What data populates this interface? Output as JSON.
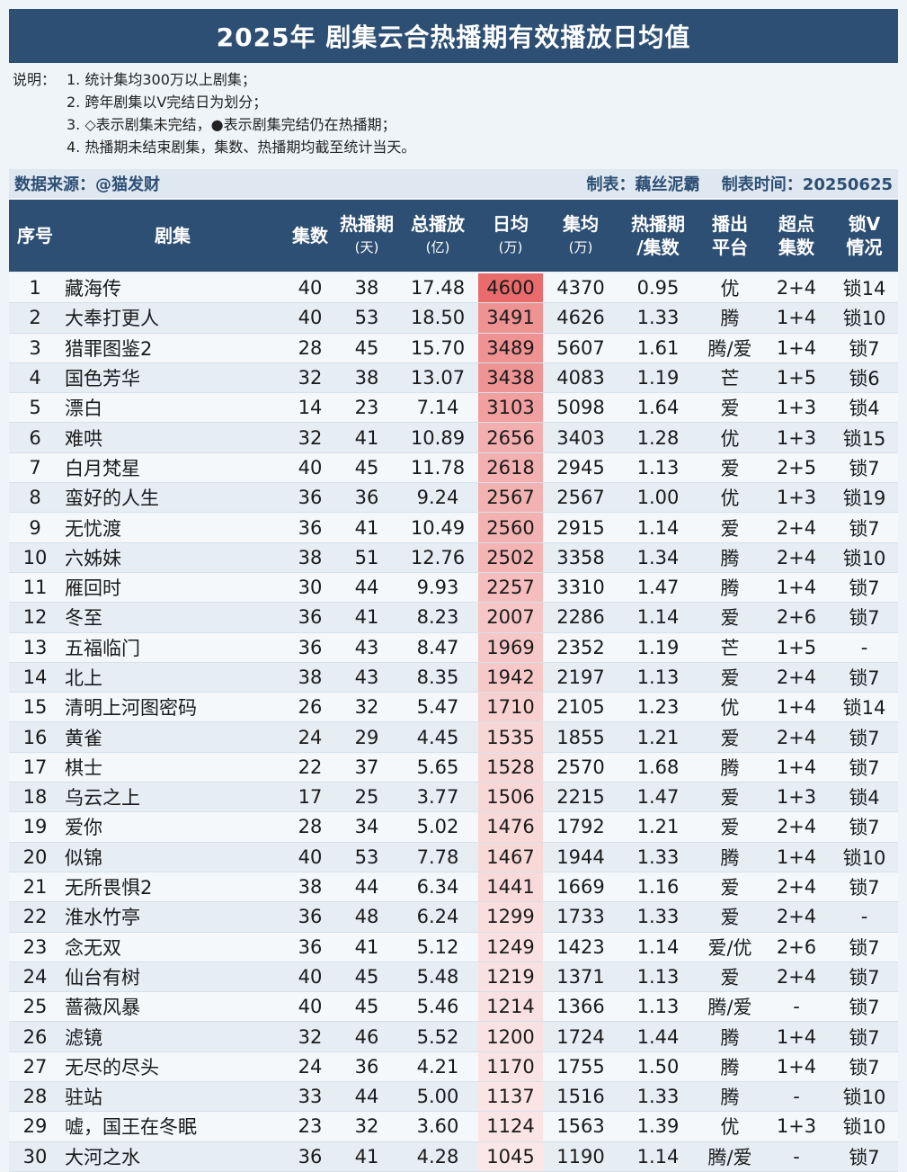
{
  "title": "2025年 剧集云合热播期有效播放日均值",
  "notes": {
    "label": "说明：",
    "items": [
      "1. 统计集均300万以上剧集；",
      "2. 跨年剧集以V完结日为划分；",
      "3. ◇表示剧集未完结，●表示剧集完结仍在热播期；",
      "4. 热播期未结束剧集，集数、热播期均截至统计当天。"
    ]
  },
  "source": {
    "left": "数据来源：@猫发财",
    "maker": "制表：藕丝泥霸",
    "date": "制表时间：20250625"
  },
  "headers": {
    "idx": "序号",
    "name": "剧集",
    "episodes": "集数",
    "days": "热播期",
    "days_unit": "(天)",
    "total": "总播放",
    "total_unit": "(亿)",
    "avg": "日均",
    "avg_unit": "(万)",
    "ep_avg": "集均",
    "ep_avg_unit": "(万)",
    "ratio": "热播期",
    "ratio_unit": "/集数",
    "platform": "播出",
    "platform2": "平台",
    "super": "超点",
    "super2": "集数",
    "lock": "锁V",
    "lock2": "情况"
  },
  "colors": {
    "header_bg": "#2d4f74",
    "avg_max": "#e96b6b",
    "avg_min": "#fbe7e7"
  },
  "rows": [
    {
      "idx": "1",
      "name": "藏海传",
      "ep": "40",
      "days": "38",
      "total": "17.48",
      "avg": "4600",
      "ep_avg": "4370",
      "ratio": "0.95",
      "plat": "优",
      "sup": "2+4",
      "lock": "锁14"
    },
    {
      "idx": "2",
      "name": "大奉打更人",
      "ep": "40",
      "days": "53",
      "total": "18.50",
      "avg": "3491",
      "ep_avg": "4626",
      "ratio": "1.33",
      "plat": "腾",
      "sup": "1+4",
      "lock": "锁10"
    },
    {
      "idx": "3",
      "name": "猎罪图鉴2",
      "ep": "28",
      "days": "45",
      "total": "15.70",
      "avg": "3489",
      "ep_avg": "5607",
      "ratio": "1.61",
      "plat": "腾/爱",
      "sup": "1+4",
      "lock": "锁7"
    },
    {
      "idx": "4",
      "name": "国色芳华",
      "ep": "32",
      "days": "38",
      "total": "13.07",
      "avg": "3438",
      "ep_avg": "4083",
      "ratio": "1.19",
      "plat": "芒",
      "sup": "1+5",
      "lock": "锁6"
    },
    {
      "idx": "5",
      "name": "漂白",
      "ep": "14",
      "days": "23",
      "total": "7.14",
      "avg": "3103",
      "ep_avg": "5098",
      "ratio": "1.64",
      "plat": "爱",
      "sup": "1+3",
      "lock": "锁4"
    },
    {
      "idx": "6",
      "name": "难哄",
      "ep": "32",
      "days": "41",
      "total": "10.89",
      "avg": "2656",
      "ep_avg": "3403",
      "ratio": "1.28",
      "plat": "优",
      "sup": "1+3",
      "lock": "锁15"
    },
    {
      "idx": "7",
      "name": "白月梵星",
      "ep": "40",
      "days": "45",
      "total": "11.78",
      "avg": "2618",
      "ep_avg": "2945",
      "ratio": "1.13",
      "plat": "爱",
      "sup": "2+5",
      "lock": "锁7"
    },
    {
      "idx": "8",
      "name": "蛮好的人生",
      "ep": "36",
      "days": "36",
      "total": "9.24",
      "avg": "2567",
      "ep_avg": "2567",
      "ratio": "1.00",
      "plat": "优",
      "sup": "1+3",
      "lock": "锁19"
    },
    {
      "idx": "9",
      "name": "无忧渡",
      "ep": "36",
      "days": "41",
      "total": "10.49",
      "avg": "2560",
      "ep_avg": "2915",
      "ratio": "1.14",
      "plat": "爱",
      "sup": "2+4",
      "lock": "锁7"
    },
    {
      "idx": "10",
      "name": "六姊妹",
      "ep": "38",
      "days": "51",
      "total": "12.76",
      "avg": "2502",
      "ep_avg": "3358",
      "ratio": "1.34",
      "plat": "腾",
      "sup": "2+4",
      "lock": "锁10"
    },
    {
      "idx": "11",
      "name": "雁回时",
      "ep": "30",
      "days": "44",
      "total": "9.93",
      "avg": "2257",
      "ep_avg": "3310",
      "ratio": "1.47",
      "plat": "腾",
      "sup": "1+4",
      "lock": "锁7"
    },
    {
      "idx": "12",
      "name": "冬至",
      "ep": "36",
      "days": "41",
      "total": "8.23",
      "avg": "2007",
      "ep_avg": "2286",
      "ratio": "1.14",
      "plat": "爱",
      "sup": "2+6",
      "lock": "锁7"
    },
    {
      "idx": "13",
      "name": "五福临门",
      "ep": "36",
      "days": "43",
      "total": "8.47",
      "avg": "1969",
      "ep_avg": "2352",
      "ratio": "1.19",
      "plat": "芒",
      "sup": "1+5",
      "lock": "-"
    },
    {
      "idx": "14",
      "name": "北上",
      "ep": "38",
      "days": "43",
      "total": "8.35",
      "avg": "1942",
      "ep_avg": "2197",
      "ratio": "1.13",
      "plat": "爱",
      "sup": "2+4",
      "lock": "锁7"
    },
    {
      "idx": "15",
      "name": "清明上河图密码",
      "ep": "26",
      "days": "32",
      "total": "5.47",
      "avg": "1710",
      "ep_avg": "2105",
      "ratio": "1.23",
      "plat": "优",
      "sup": "1+4",
      "lock": "锁14"
    },
    {
      "idx": "16",
      "name": "黄雀",
      "ep": "24",
      "days": "29",
      "total": "4.45",
      "avg": "1535",
      "ep_avg": "1855",
      "ratio": "1.21",
      "plat": "爱",
      "sup": "2+4",
      "lock": "锁7"
    },
    {
      "idx": "17",
      "name": "棋士",
      "ep": "22",
      "days": "37",
      "total": "5.65",
      "avg": "1528",
      "ep_avg": "2570",
      "ratio": "1.68",
      "plat": "腾",
      "sup": "1+4",
      "lock": "锁7"
    },
    {
      "idx": "18",
      "name": "乌云之上",
      "ep": "17",
      "days": "25",
      "total": "3.77",
      "avg": "1506",
      "ep_avg": "2215",
      "ratio": "1.47",
      "plat": "爱",
      "sup": "1+3",
      "lock": "锁4"
    },
    {
      "idx": "19",
      "name": "爱你",
      "ep": "28",
      "days": "34",
      "total": "5.02",
      "avg": "1476",
      "ep_avg": "1792",
      "ratio": "1.21",
      "plat": "爱",
      "sup": "2+4",
      "lock": "锁7"
    },
    {
      "idx": "20",
      "name": "似锦",
      "ep": "40",
      "days": "53",
      "total": "7.78",
      "avg": "1467",
      "ep_avg": "1944",
      "ratio": "1.33",
      "plat": "腾",
      "sup": "1+4",
      "lock": "锁10"
    },
    {
      "idx": "21",
      "name": "无所畏惧2",
      "ep": "38",
      "days": "44",
      "total": "6.34",
      "avg": "1441",
      "ep_avg": "1669",
      "ratio": "1.16",
      "plat": "爱",
      "sup": "2+4",
      "lock": "锁7"
    },
    {
      "idx": "22",
      "name": "淮水竹亭",
      "ep": "36",
      "days": "48",
      "total": "6.24",
      "avg": "1299",
      "ep_avg": "1733",
      "ratio": "1.33",
      "plat": "爱",
      "sup": "2+4",
      "lock": "-"
    },
    {
      "idx": "23",
      "name": "念无双",
      "ep": "36",
      "days": "41",
      "total": "5.12",
      "avg": "1249",
      "ep_avg": "1423",
      "ratio": "1.14",
      "plat": "爱/优",
      "sup": "2+6",
      "lock": "锁7"
    },
    {
      "idx": "24",
      "name": "仙台有树",
      "ep": "40",
      "days": "45",
      "total": "5.48",
      "avg": "1219",
      "ep_avg": "1371",
      "ratio": "1.13",
      "plat": "爱",
      "sup": "2+4",
      "lock": "锁7"
    },
    {
      "idx": "25",
      "name": "蔷薇风暴",
      "ep": "40",
      "days": "45",
      "total": "5.46",
      "avg": "1214",
      "ep_avg": "1366",
      "ratio": "1.13",
      "plat": "腾/爱",
      "sup": "-",
      "lock": "锁7"
    },
    {
      "idx": "26",
      "name": "滤镜",
      "ep": "32",
      "days": "46",
      "total": "5.52",
      "avg": "1200",
      "ep_avg": "1724",
      "ratio": "1.44",
      "plat": "腾",
      "sup": "1+4",
      "lock": "锁7"
    },
    {
      "idx": "27",
      "name": "无尽的尽头",
      "ep": "24",
      "days": "36",
      "total": "4.21",
      "avg": "1170",
      "ep_avg": "1755",
      "ratio": "1.50",
      "plat": "腾",
      "sup": "1+4",
      "lock": "锁7"
    },
    {
      "idx": "28",
      "name": "驻站",
      "ep": "33",
      "days": "44",
      "total": "5.00",
      "avg": "1137",
      "ep_avg": "1516",
      "ratio": "1.33",
      "plat": "腾",
      "sup": "-",
      "lock": "锁10"
    },
    {
      "idx": "29",
      "name": "嘘，国王在冬眠",
      "ep": "23",
      "days": "32",
      "total": "3.60",
      "avg": "1124",
      "ep_avg": "1563",
      "ratio": "1.39",
      "plat": "优",
      "sup": "1+3",
      "lock": "锁10"
    },
    {
      "idx": "30",
      "name": "大河之水",
      "ep": "36",
      "days": "41",
      "total": "4.28",
      "avg": "1045",
      "ep_avg": "1190",
      "ratio": "1.14",
      "plat": "腾/爱",
      "sup": "-",
      "lock": "锁7"
    }
  ]
}
